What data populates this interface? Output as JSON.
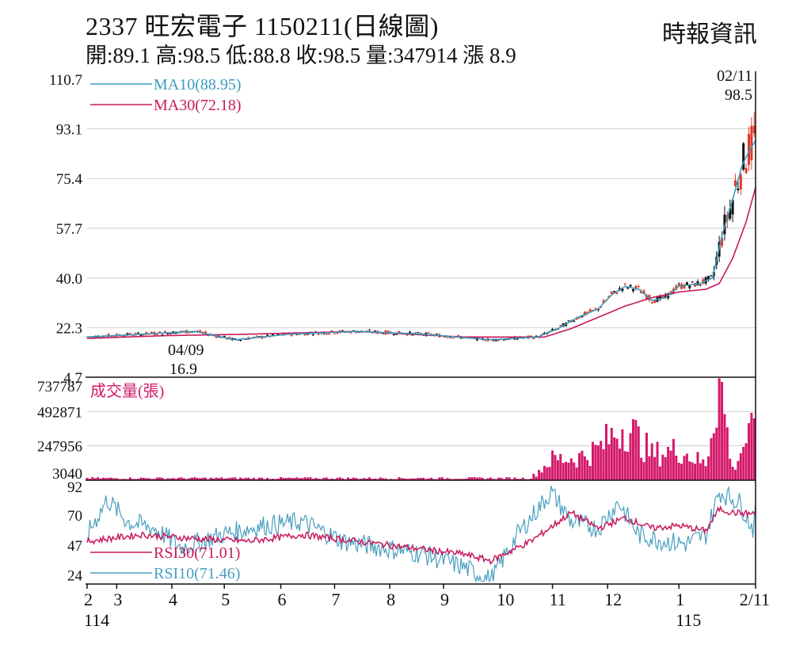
{
  "header": {
    "title": "2337  旺宏電子 1150211(日線圖)",
    "stats": "開:89.1 高:98.5 低:88.8 收:98.5 量:347914 漲 8.9",
    "source": "時報資訊"
  },
  "colors": {
    "ma10": "#3a9cc0",
    "ma30": "#c8195c",
    "rsi30": "#c8195c",
    "rsi10": "#4a9fbf",
    "up": "#e03a2a",
    "down": "#111111",
    "volume": "#d4186a",
    "grid": "#cfcfcf"
  },
  "chart_data": [
    {
      "type": "candlestick",
      "panel": "price",
      "yticks": [
        "110.7",
        "93.1",
        "75.4",
        "57.7",
        "40.0",
        "22.3",
        "4.7"
      ],
      "ylim": [
        4.7,
        110.7
      ],
      "legend": [
        {
          "name": "MA10(88.95)",
          "color": "#3a9cc0"
        },
        {
          "name": "MA30(72.18)",
          "color": "#c8195c"
        }
      ],
      "annotations": [
        {
          "date": "02/11",
          "value": "98.5"
        },
        {
          "date": "04/09",
          "value": "16.9"
        }
      ],
      "ma10_anchors": [
        [
          0,
          19
        ],
        [
          40,
          20
        ],
        [
          80,
          21
        ],
        [
          110,
          18
        ],
        [
          150,
          20
        ],
        [
          200,
          21
        ],
        [
          250,
          20
        ],
        [
          300,
          18
        ],
        [
          335,
          19
        ],
        [
          350,
          22
        ],
        [
          365,
          26
        ],
        [
          380,
          29
        ],
        [
          390,
          34
        ],
        [
          400,
          37
        ],
        [
          410,
          36
        ],
        [
          420,
          32
        ],
        [
          430,
          33
        ],
        [
          440,
          37
        ],
        [
          455,
          38
        ],
        [
          465,
          40
        ],
        [
          472,
          55
        ],
        [
          480,
          68
        ],
        [
          487,
          80
        ],
        [
          492,
          85
        ],
        [
          497,
          88.95
        ]
      ],
      "ma30_anchors": [
        [
          0,
          18.5
        ],
        [
          60,
          19.5
        ],
        [
          120,
          20
        ],
        [
          200,
          21
        ],
        [
          280,
          19
        ],
        [
          340,
          19
        ],
        [
          360,
          22
        ],
        [
          380,
          26
        ],
        [
          400,
          30
        ],
        [
          420,
          33
        ],
        [
          440,
          35
        ],
        [
          460,
          36
        ],
        [
          470,
          38
        ],
        [
          480,
          47
        ],
        [
          490,
          60
        ],
        [
          497,
          72.18
        ]
      ]
    },
    {
      "type": "bar",
      "panel": "volume",
      "title": "成交量(張)",
      "yticks": [
        "737787",
        "492871",
        "247956",
        "3040"
      ],
      "ylim": [
        3040,
        737787
      ],
      "vol_anchors": [
        [
          0,
          0.02
        ],
        [
          330,
          0.02
        ],
        [
          345,
          0.2
        ],
        [
          365,
          0.22
        ],
        [
          380,
          0.3
        ],
        [
          400,
          0.55
        ],
        [
          420,
          0.25
        ],
        [
          440,
          0.3
        ],
        [
          460,
          0.15
        ],
        [
          470,
          1.0
        ],
        [
          480,
          0.1
        ],
        [
          490,
          0.4
        ],
        [
          497,
          0.47
        ]
      ]
    },
    {
      "type": "line",
      "panel": "rsi",
      "yticks": [
        "92",
        "70",
        "47",
        "24"
      ],
      "ylim": [
        17,
        97
      ],
      "legend": [
        {
          "name": "RSI30(71.01)",
          "color": "#c8195c"
        },
        {
          "name": "RSI10(71.46)",
          "color": "#4a9fbf"
        }
      ],
      "rsi30_anchors": [
        [
          0,
          50
        ],
        [
          40,
          55
        ],
        [
          80,
          52
        ],
        [
          120,
          50
        ],
        [
          160,
          55
        ],
        [
          200,
          50
        ],
        [
          240,
          45
        ],
        [
          280,
          40
        ],
        [
          300,
          35
        ],
        [
          330,
          50
        ],
        [
          360,
          72
        ],
        [
          380,
          60
        ],
        [
          400,
          68
        ],
        [
          420,
          60
        ],
        [
          440,
          62
        ],
        [
          460,
          58
        ],
        [
          470,
          75
        ],
        [
          480,
          72
        ],
        [
          497,
          71.01
        ]
      ],
      "rsi10_anchors": [
        [
          0,
          55
        ],
        [
          15,
          82
        ],
        [
          30,
          65
        ],
        [
          50,
          60
        ],
        [
          70,
          45
        ],
        [
          100,
          55
        ],
        [
          130,
          62
        ],
        [
          160,
          65
        ],
        [
          190,
          50
        ],
        [
          220,
          45
        ],
        [
          250,
          40
        ],
        [
          280,
          30
        ],
        [
          300,
          20
        ],
        [
          320,
          55
        ],
        [
          345,
          88
        ],
        [
          360,
          65
        ],
        [
          380,
          60
        ],
        [
          395,
          80
        ],
        [
          410,
          55
        ],
        [
          430,
          50
        ],
        [
          445,
          48
        ],
        [
          460,
          55
        ],
        [
          470,
          88
        ],
        [
          485,
          80
        ],
        [
          495,
          60
        ],
        [
          497,
          71.46
        ]
      ]
    }
  ],
  "x_axis": {
    "ticks": [
      {
        "label": "2",
        "day": 0
      },
      {
        "label": "3",
        "day": 22
      },
      {
        "label": "4",
        "day": 63
      },
      {
        "label": "5",
        "day": 102
      },
      {
        "label": "6",
        "day": 144
      },
      {
        "label": "7",
        "day": 184
      },
      {
        "label": "8",
        "day": 225
      },
      {
        "label": "9",
        "day": 265
      },
      {
        "label": "10",
        "day": 307
      },
      {
        "label": "11",
        "day": 346
      },
      {
        "label": "12",
        "day": 387
      },
      {
        "label": "1",
        "day": 440
      },
      {
        "label": "2/11",
        "day": 497
      }
    ],
    "year_labels": [
      {
        "label": "114",
        "day": 0
      },
      {
        "label": "115",
        "day": 440
      }
    ],
    "days": 498
  }
}
